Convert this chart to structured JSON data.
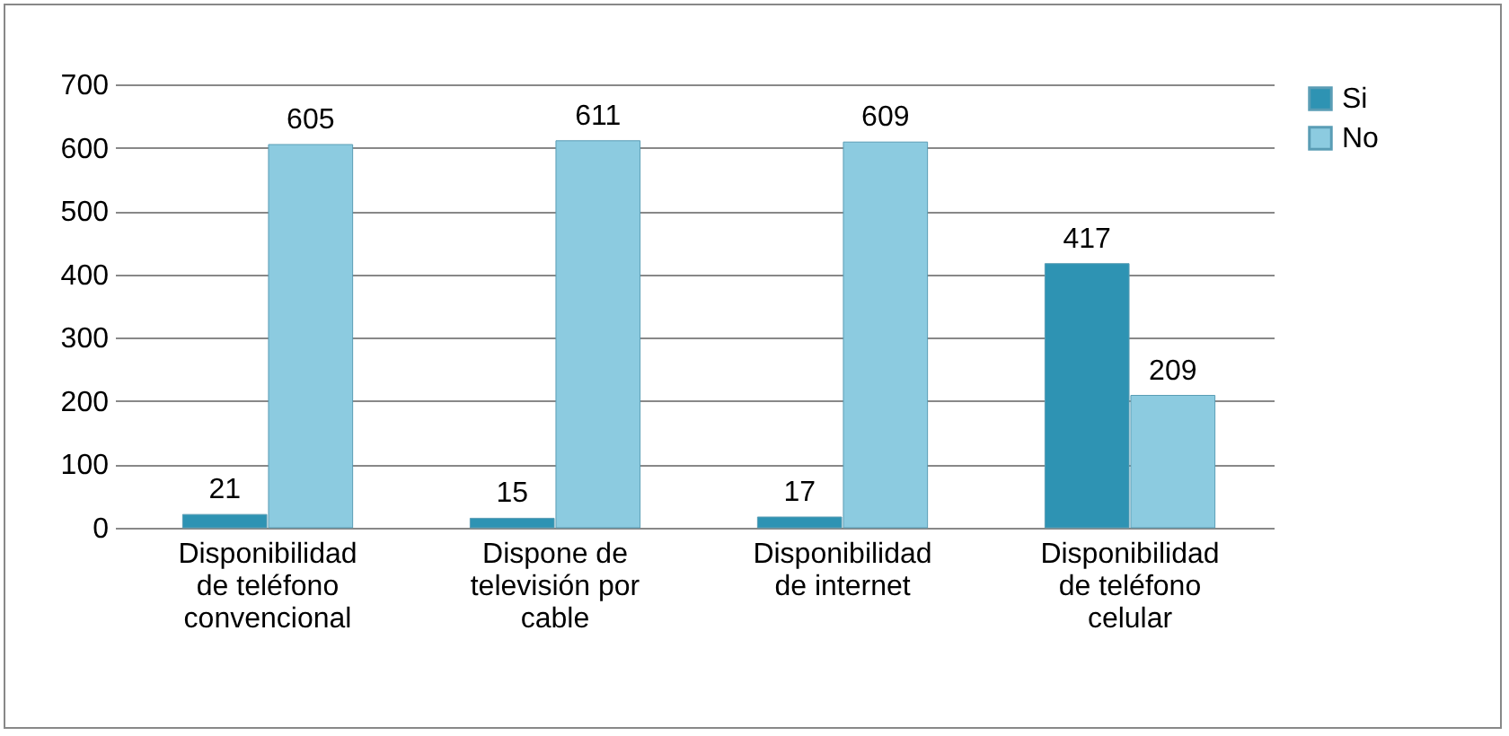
{
  "chart_data": {
    "type": "bar",
    "categories": [
      "Disponibilidad de teléfono convencional",
      "Dispone de televisión por cable",
      "Disponibilidad de internet",
      "Disponibilidad de teléfono celular"
    ],
    "series": [
      {
        "name": "Si",
        "color": "#2e93b3",
        "values": [
          21,
          15,
          17,
          417
        ]
      },
      {
        "name": "No",
        "color": "#8ccbe0",
        "values": [
          605,
          611,
          609,
          209
        ]
      }
    ],
    "ylim": [
      0,
      700
    ],
    "yticks": [
      0,
      100,
      200,
      300,
      400,
      500,
      600,
      700
    ],
    "grid": "y",
    "legend": "right",
    "data_labels": true
  }
}
